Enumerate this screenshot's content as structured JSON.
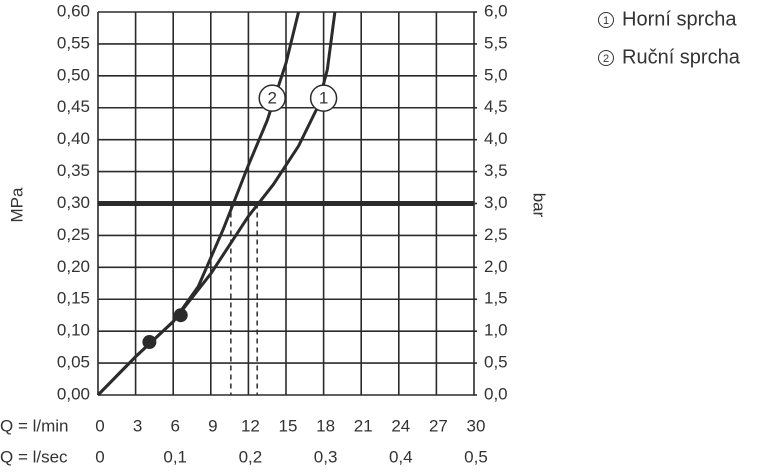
{
  "chart_data": {
    "type": "line",
    "xlabel": "Q = l/min",
    "x2label": "Q = l/sec",
    "ylabel": "MPa",
    "y2label": "bar",
    "xlim": [
      0,
      30
    ],
    "xticks": [
      0,
      3,
      6,
      9,
      12,
      15,
      18,
      21,
      24,
      27,
      30
    ],
    "x2lim": [
      0,
      0.5
    ],
    "x2ticks": [
      0,
      {
        "value": 0.1,
        "label": "0,1"
      },
      {
        "value": 0.2,
        "label": "0,2"
      },
      {
        "value": 0.3,
        "label": "0,3"
      },
      {
        "value": 0.4,
        "label": "0,4"
      },
      {
        "value": 0.5,
        "label": "0,5"
      }
    ],
    "ylim": [
      0,
      0.6
    ],
    "yticks": [
      {
        "value": 0,
        "label": "0,00"
      },
      {
        "value": 0.05,
        "label": "0,05"
      },
      {
        "value": 0.1,
        "label": "0,10"
      },
      {
        "value": 0.15,
        "label": "0,15"
      },
      {
        "value": 0.2,
        "label": "0,20"
      },
      {
        "value": 0.25,
        "label": "0,25"
      },
      {
        "value": 0.3,
        "label": "0,30"
      },
      {
        "value": 0.35,
        "label": "0,35"
      },
      {
        "value": 0.4,
        "label": "0,40"
      },
      {
        "value": 0.45,
        "label": "0,45"
      },
      {
        "value": 0.5,
        "label": "0,50"
      },
      {
        "value": 0.55,
        "label": "0,55"
      },
      {
        "value": 0.6,
        "label": "0,60"
      }
    ],
    "y2lim": [
      0,
      6
    ],
    "y2ticks": [
      {
        "value": 0,
        "label": "0,0"
      },
      {
        "value": 0.5,
        "label": "0,5"
      },
      {
        "value": 1,
        "label": "1,0"
      },
      {
        "value": 1.5,
        "label": "1,5"
      },
      {
        "value": 2,
        "label": "2,0"
      },
      {
        "value": 2.5,
        "label": "2,5"
      },
      {
        "value": 3,
        "label": "3,0"
      },
      {
        "value": 3.5,
        "label": "3,5"
      },
      {
        "value": 4,
        "label": "4,0"
      },
      {
        "value": 4.5,
        "label": "4,5"
      },
      {
        "value": 5,
        "label": "5,0"
      },
      {
        "value": 5.5,
        "label": "5,5"
      },
      {
        "value": 6,
        "label": "6,0"
      }
    ],
    "grid": true,
    "color": "#2b2b2b",
    "reference_pressure": 0.3,
    "reference_flows": [
      10.6,
      12.7
    ],
    "markers": {
      "x": [
        4.1,
        6.6
      ],
      "values": [
        0.083,
        0.125
      ]
    },
    "series": [
      {
        "name": "Horní sprcha",
        "label": "1",
        "label_at": [
          18,
          0.465
        ],
        "x": [
          0,
          3,
          6,
          9,
          12,
          14,
          16,
          17.5,
          18.3,
          18.9
        ],
        "values": [
          0,
          0.06,
          0.115,
          0.19,
          0.28,
          0.33,
          0.39,
          0.45,
          0.51,
          0.6
        ]
      },
      {
        "name": "Ruční sprcha",
        "label": "2",
        "label_at": [
          13.9,
          0.465
        ],
        "x": [
          0,
          3,
          6,
          8,
          10,
          11,
          12,
          13.5,
          15,
          16
        ],
        "values": [
          0,
          0.06,
          0.115,
          0.17,
          0.26,
          0.31,
          0.36,
          0.43,
          0.52,
          0.6
        ]
      }
    ]
  }
}
